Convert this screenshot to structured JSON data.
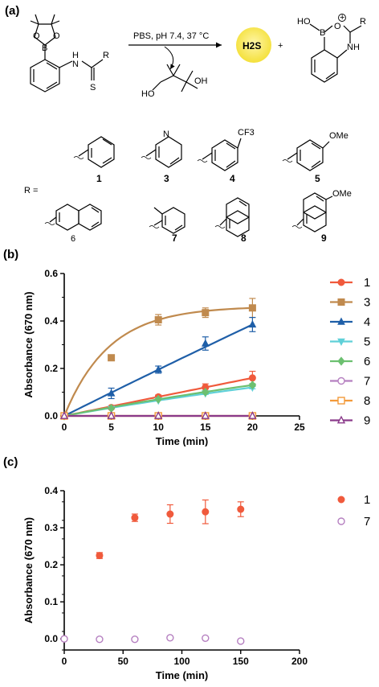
{
  "scheme": {
    "panel_label": "(a)",
    "conditions": "PBS, pH 7.4, 37 °C",
    "product_h2s": "H2S",
    "plus": "+",
    "r_label": "R =",
    "substituents": [
      {
        "id": "1",
        "group": "phenyl"
      },
      {
        "id": "3",
        "group": "2-pyridyl",
        "atom": "N"
      },
      {
        "id": "4",
        "group": "4-CF3-phenyl",
        "atom": "CF3"
      },
      {
        "id": "5",
        "group": "4-OMe-phenyl",
        "atom": "OMe"
      },
      {
        "id": "6",
        "group": "2-naphthyl"
      },
      {
        "id": "7",
        "group": "2-tolyl"
      },
      {
        "id": "8",
        "group": "1-naphthyl"
      },
      {
        "id": "9",
        "group": "4-OMe-1-naphthyl",
        "atom": "OMe"
      }
    ],
    "atoms": {
      "B": "B",
      "O": "O",
      "N": "N",
      "H": "H",
      "S": "S",
      "R": "R",
      "HO": "HO",
      "OH": "OH",
      "NH": "NH",
      "plus_sign": "+"
    }
  },
  "chart_data": [
    {
      "panel_label": "(b)",
      "type": "scatter",
      "xlabel": "Time (min)",
      "ylabel": "Absorbance (670 nm)",
      "xlim": [
        0,
        25
      ],
      "ylim": [
        0,
        0.6
      ],
      "xticks": [
        "0",
        "5",
        "10",
        "15",
        "20",
        "25"
      ],
      "yticks": [
        "0.0",
        "0.2",
        "0.4",
        "0.6"
      ],
      "legend_position": "right",
      "fit_curves": true,
      "series": [
        {
          "name": "1",
          "color": "#f05a3c",
          "marker": "circle-filled",
          "x": [
            0,
            5,
            10,
            15,
            20
          ],
          "y": [
            0.0,
            0.035,
            0.08,
            0.12,
            0.16
          ],
          "err": [
            0.003,
            0.006,
            0.008,
            0.015,
            0.028
          ]
        },
        {
          "name": "3",
          "color": "#c08a4e",
          "marker": "square-filled",
          "x": [
            0,
            5,
            10,
            15,
            20
          ],
          "y": [
            0.0,
            0.245,
            0.405,
            0.435,
            0.455
          ],
          "err": [
            0.003,
            0.01,
            0.022,
            0.02,
            0.04
          ]
        },
        {
          "name": "4",
          "color": "#1f5fa8",
          "marker": "triangle-up-filled",
          "x": [
            0,
            5,
            10,
            15,
            20
          ],
          "y": [
            0.0,
            0.095,
            0.195,
            0.305,
            0.385
          ],
          "err": [
            0.003,
            0.022,
            0.015,
            0.028,
            0.03
          ]
        },
        {
          "name": "5",
          "color": "#5fd0d8",
          "marker": "triangle-down-filled",
          "x": [
            0,
            5,
            10,
            15,
            20
          ],
          "y": [
            0.0,
            0.03,
            0.065,
            0.095,
            0.12
          ],
          "err": [
            0.003,
            0.004,
            0.004,
            0.005,
            0.006
          ]
        },
        {
          "name": "6",
          "color": "#6cc070",
          "marker": "diamond-filled",
          "x": [
            0,
            5,
            10,
            15,
            20
          ],
          "y": [
            0.0,
            0.032,
            0.07,
            0.1,
            0.13
          ],
          "err": [
            0.003,
            0.004,
            0.004,
            0.005,
            0.006
          ]
        },
        {
          "name": "7",
          "color": "#b57fc0",
          "marker": "circle-open",
          "x": [
            0,
            5,
            10,
            15,
            20
          ],
          "y": [
            0.0,
            0.0,
            0.0,
            0.0,
            0.0
          ],
          "err": [
            0,
            0,
            0,
            0,
            0
          ]
        },
        {
          "name": "8",
          "color": "#f39a3a",
          "marker": "square-open",
          "x": [
            0,
            5,
            10,
            15,
            20
          ],
          "y": [
            0.0,
            0.0,
            0.0,
            0.0,
            0.0
          ],
          "err": [
            0,
            0,
            0,
            0,
            0
          ]
        },
        {
          "name": "9",
          "color": "#8a3a8a",
          "marker": "triangle-up-open",
          "x": [
            0,
            5,
            10,
            15,
            20
          ],
          "y": [
            0.0,
            0.0,
            0.0,
            0.0,
            0.0
          ],
          "err": [
            0,
            0,
            0,
            0,
            0
          ]
        }
      ]
    },
    {
      "panel_label": "(c)",
      "type": "scatter",
      "xlabel": "Time (min)",
      "ylabel": "Absorbance (670 nm)",
      "xlim": [
        0,
        200
      ],
      "ylim": [
        -0.03,
        0.4
      ],
      "xticks": [
        "0",
        "50",
        "100",
        "150",
        "200"
      ],
      "yticks": [
        "0.0",
        "0.1",
        "0.2",
        "0.3",
        "0.4"
      ],
      "legend_position": "right",
      "series": [
        {
          "name": "1",
          "color": "#f05a3c",
          "marker": "circle-filled",
          "x": [
            0,
            30,
            60,
            90,
            120,
            150
          ],
          "y": [
            0.0,
            0.225,
            0.327,
            0.337,
            0.343,
            0.35
          ],
          "err": [
            0.003,
            0.008,
            0.01,
            0.025,
            0.032,
            0.02
          ]
        },
        {
          "name": "7",
          "color": "#b57fc0",
          "marker": "circle-open",
          "x": [
            0,
            30,
            60,
            90,
            120,
            150
          ],
          "y": [
            0.0,
            -0.001,
            -0.001,
            0.003,
            0.002,
            -0.006
          ],
          "err": [
            0,
            0,
            0,
            0,
            0,
            0
          ]
        }
      ]
    }
  ]
}
